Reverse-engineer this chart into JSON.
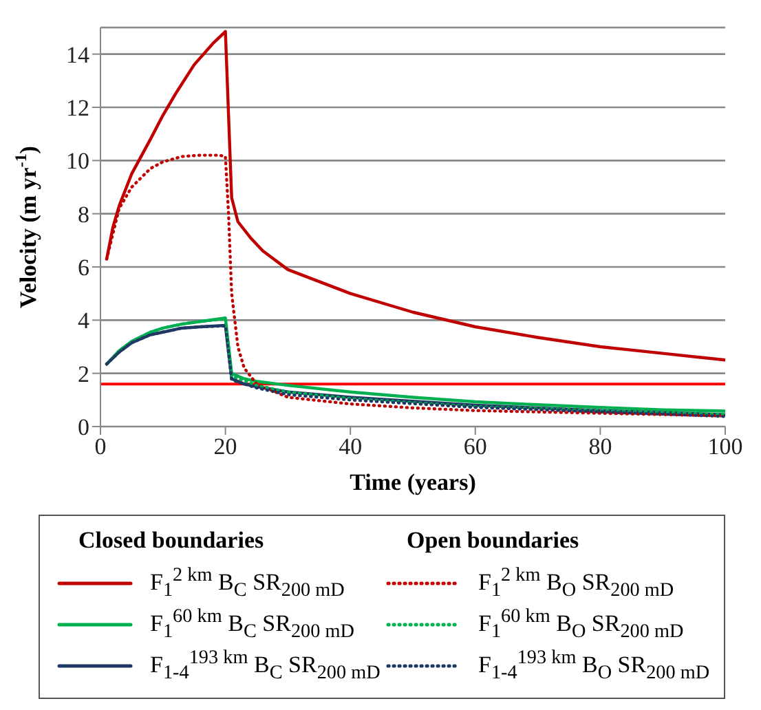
{
  "chart_data": {
    "type": "line",
    "xlabel": "Time (years)",
    "ylabel": "Velocity (m yr$^{-1}$)",
    "xlim": [
      0,
      100
    ],
    "xticks": [
      0,
      20,
      40,
      60,
      80,
      100
    ],
    "ylim": [
      0,
      15
    ],
    "yticks": [
      0,
      2,
      4,
      6,
      8,
      10,
      12,
      14
    ],
    "grid": "y",
    "legend": "bottom",
    "marker": "none",
    "annotations": [
      "Closed boundaries",
      "Open boundaries"
    ],
    "ref_lines": [
      {
        "axis": "y",
        "value": 1.6,
        "color": "#ff0000",
        "line_style": "solid"
      }
    ],
    "series": [
      {
        "name": "F$_{1}$$^{2 km}$ B$_{C}$ SR$_{200 mD}$",
        "color": "#c00000",
        "line_style": "solid",
        "x": [
          1,
          2,
          3,
          5,
          8,
          10,
          12,
          15,
          18,
          20,
          21,
          22,
          24,
          26,
          30,
          40,
          50,
          60,
          70,
          80,
          90,
          100
        ],
        "values": [
          6.3,
          7.5,
          8.3,
          9.5,
          10.8,
          11.7,
          12.5,
          13.6,
          14.4,
          14.85,
          8.6,
          7.7,
          7.1,
          6.6,
          5.9,
          5.0,
          4.3,
          3.75,
          3.35,
          3.0,
          2.75,
          2.5
        ]
      },
      {
        "name": "F$_{1}$$^{60 km}$ B$_{C}$ SR$_{200 mD}$",
        "color": "#00b050",
        "line_style": "solid",
        "x": [
          1,
          3,
          5,
          8,
          10,
          13,
          16,
          20,
          21,
          23,
          25,
          30,
          40,
          50,
          60,
          70,
          80,
          90,
          100
        ],
        "values": [
          2.35,
          2.85,
          3.2,
          3.55,
          3.7,
          3.85,
          3.95,
          4.08,
          2.0,
          1.8,
          1.7,
          1.55,
          1.3,
          1.1,
          0.93,
          0.82,
          0.72,
          0.63,
          0.58
        ]
      },
      {
        "name": "F$_{1-4}$$^{193 km}$ B$_{C}$ SR$_{200 mD}$",
        "color": "#1f3864",
        "line_style": "solid",
        "x": [
          1,
          3,
          5,
          8,
          10,
          13,
          16,
          20,
          21,
          23,
          25,
          30,
          40,
          50,
          60,
          80,
          100
        ],
        "values": [
          2.35,
          2.8,
          3.15,
          3.45,
          3.55,
          3.7,
          3.75,
          3.8,
          1.8,
          1.6,
          1.5,
          1.3,
          1.1,
          0.95,
          0.8,
          0.6,
          0.45
        ]
      },
      {
        "name": "F$_{1}$$^{2 km}$ B$_{O}$ SR$_{200 mD}$",
        "color": "#c00000",
        "line_style": "dotted",
        "x": [
          1,
          3,
          5,
          8,
          10,
          13,
          16,
          19,
          20,
          20.5,
          21,
          22,
          23,
          25,
          30,
          40,
          50,
          60,
          80,
          100
        ],
        "values": [
          6.3,
          8.2,
          9.0,
          9.7,
          9.95,
          10.15,
          10.2,
          10.2,
          10.15,
          8,
          5,
          3,
          2.2,
          1.6,
          1.1,
          0.85,
          0.7,
          0.6,
          0.5,
          0.4
        ]
      },
      {
        "name": "F$_{1}$$^{60 km}$ B$_{O}$ SR$_{200 mD}$",
        "color": "#00b050",
        "line_style": "dotted",
        "x": [
          1,
          3,
          5,
          8,
          10,
          13,
          16,
          20,
          21,
          25,
          30,
          40,
          60,
          80,
          100
        ],
        "values": [
          2.35,
          2.85,
          3.2,
          3.55,
          3.7,
          3.85,
          3.95,
          4.05,
          1.9,
          1.55,
          1.3,
          1.05,
          0.75,
          0.6,
          0.45
        ]
      },
      {
        "name": "F$_{1-4}$$^{193 km}$ B$_{O}$ SR$_{200 mD}$",
        "color": "#1f3864",
        "line_style": "dotted",
        "x": [
          1,
          3,
          5,
          8,
          10,
          13,
          16,
          20,
          21,
          25,
          30,
          40,
          60,
          80,
          100
        ],
        "values": [
          2.35,
          2.8,
          3.15,
          3.45,
          3.55,
          3.7,
          3.75,
          3.78,
          1.75,
          1.45,
          1.2,
          1.0,
          0.72,
          0.55,
          0.38
        ]
      }
    ]
  }
}
